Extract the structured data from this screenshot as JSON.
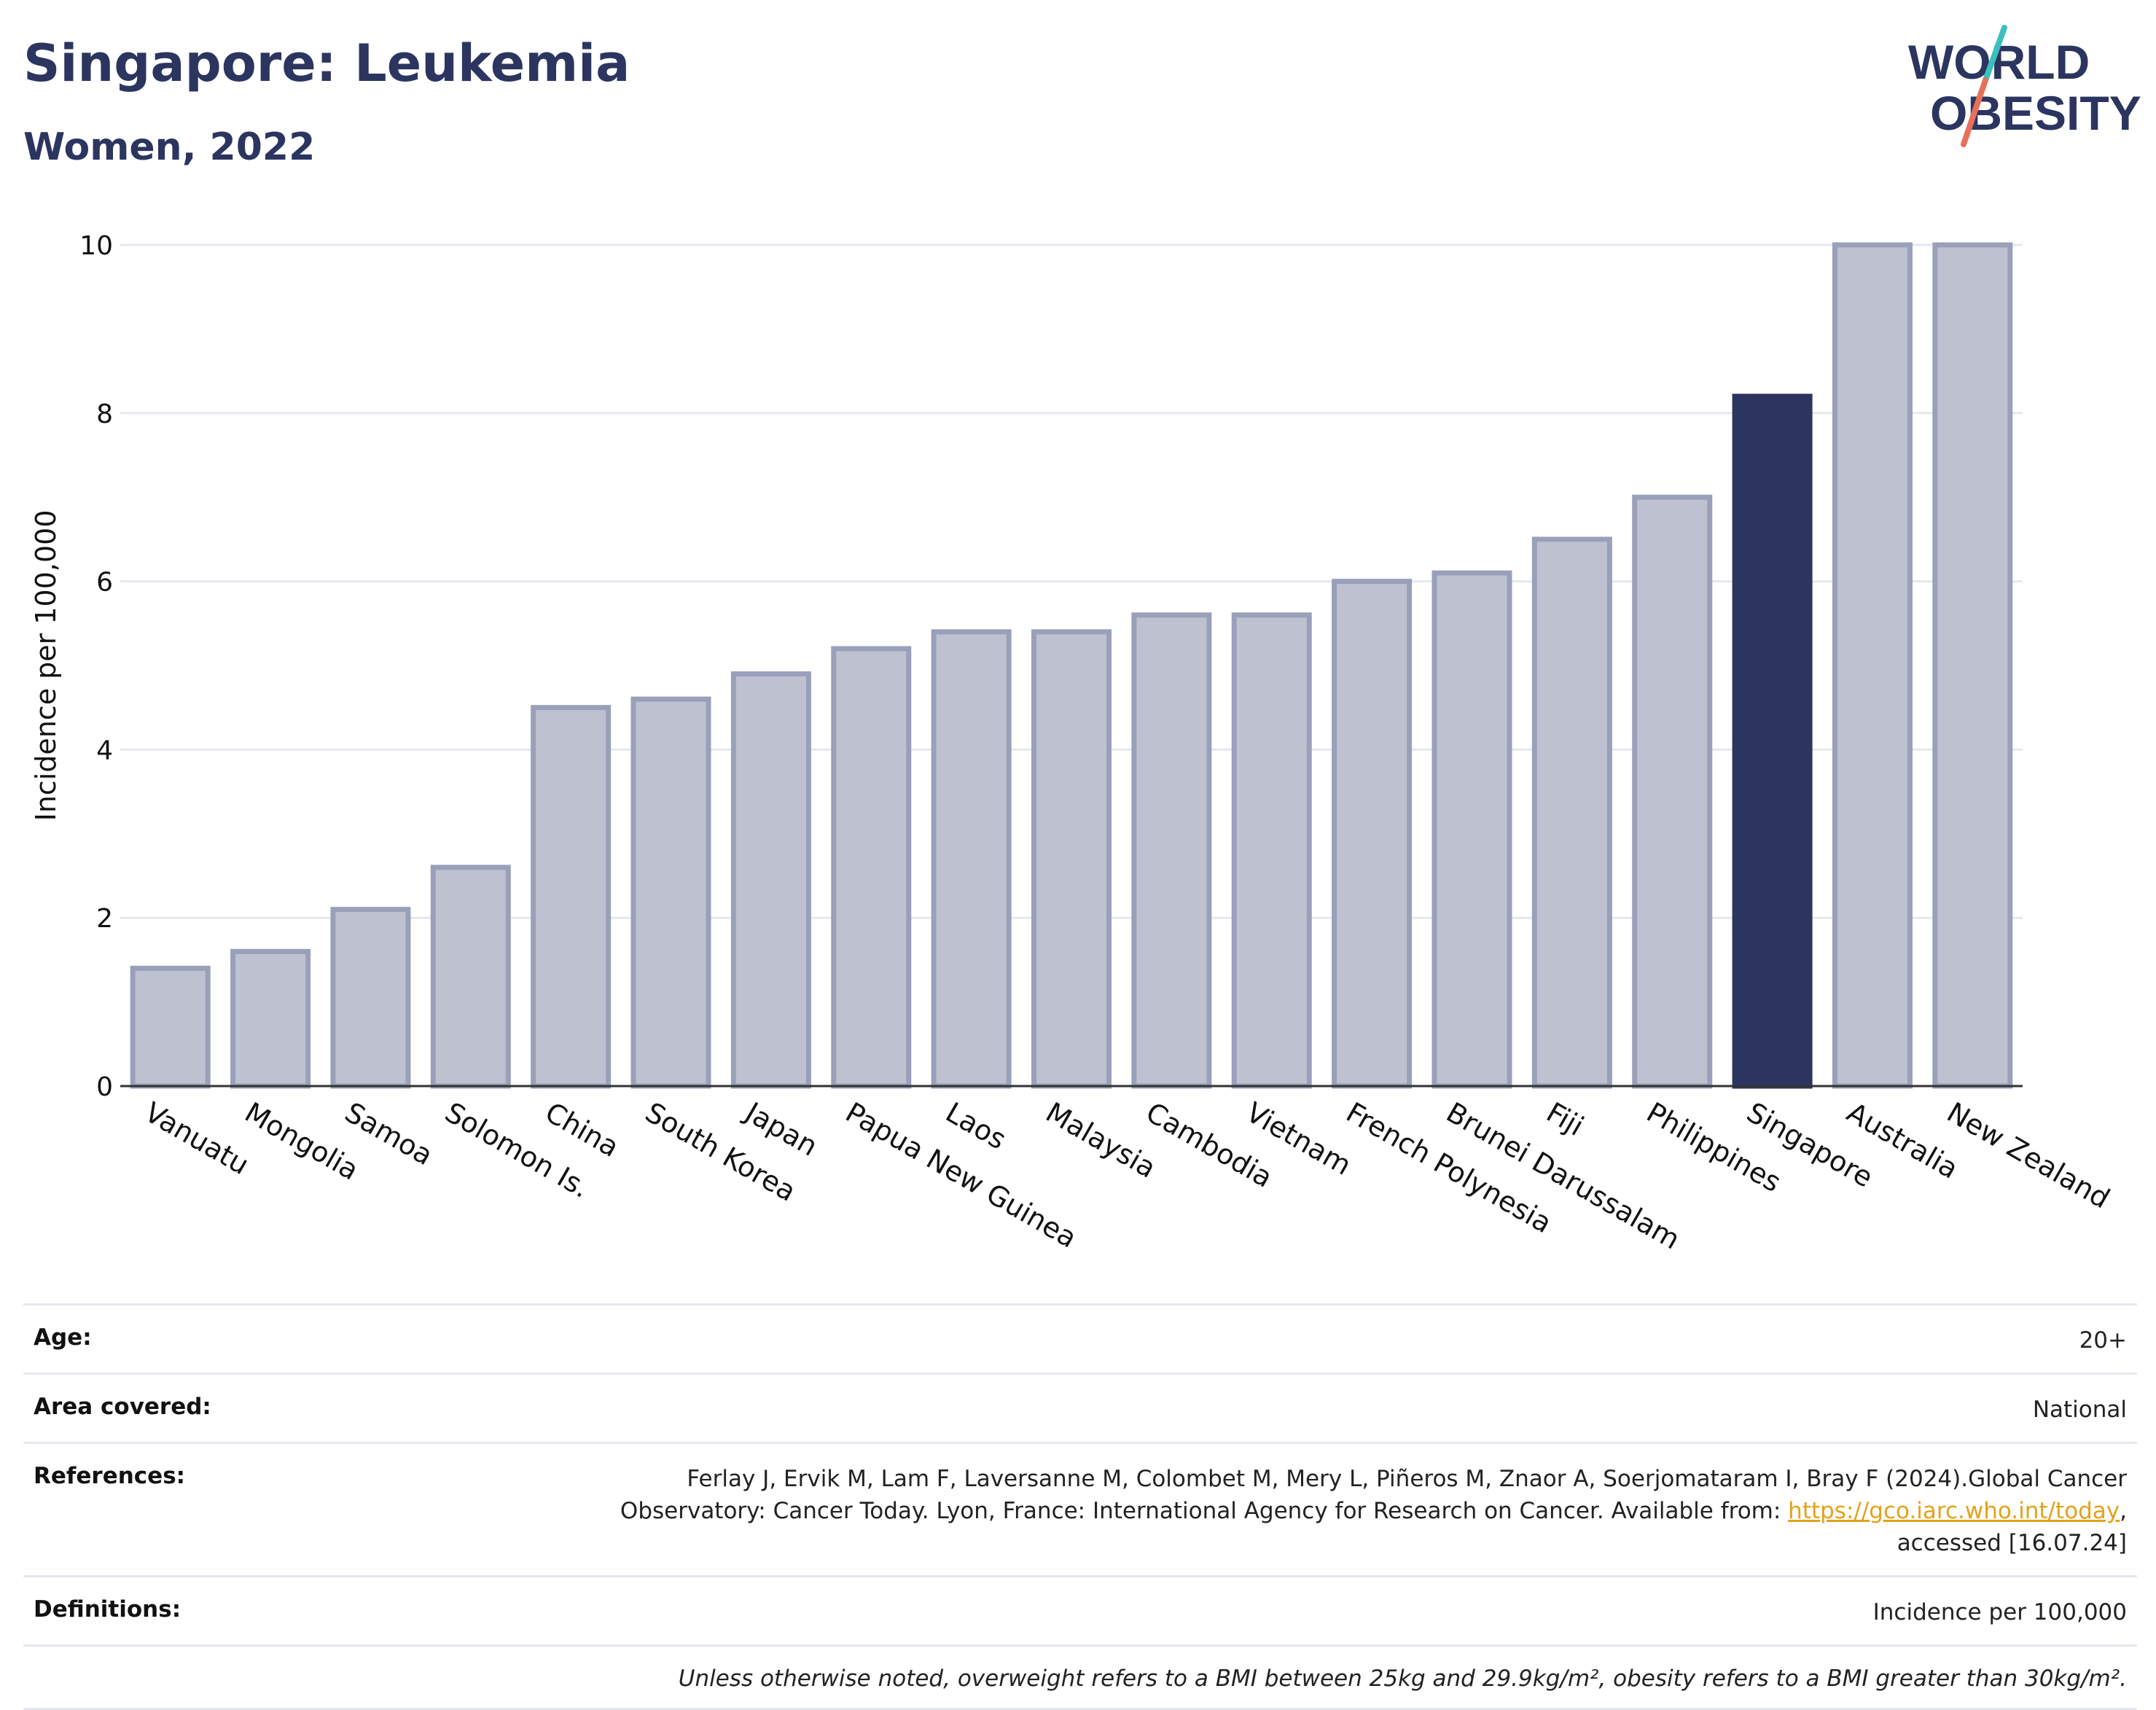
{
  "title": "Singapore: Leukemia",
  "subtitle": "Women, 2022",
  "logo": {
    "line1": "WORLD",
    "line2": "OBESITY",
    "accent_colors": [
      "#3bbfbf",
      "#e8705a"
    ]
  },
  "colors": {
    "highlight": "#2b3560",
    "bar_fill": "#bec2d0",
    "bar_stroke": "#9aa0ba",
    "grid": "#e6e8ef",
    "text": "#2b3560"
  },
  "chart_data": {
    "type": "bar",
    "categories": [
      "Vanuatu",
      "Mongolia",
      "Samoa",
      "Solomon Is.",
      "China",
      "South Korea",
      "Japan",
      "Papua New Guinea",
      "Laos",
      "Malaysia",
      "Cambodia",
      "Vietnam",
      "French Polynesia",
      "Brunei Darussalam",
      "Fiji",
      "Philippines",
      "Singapore",
      "Australia",
      "New Zealand"
    ],
    "values": [
      1.4,
      1.6,
      2.1,
      2.6,
      4.5,
      4.6,
      4.9,
      5.2,
      5.4,
      5.4,
      5.6,
      5.6,
      6.0,
      6.1,
      6.5,
      7.0,
      8.2,
      10.0,
      10.0
    ],
    "highlight": "Singapore",
    "ylabel": "Incidence per 100,000",
    "xlabel": "",
    "ylim": [
      0,
      10
    ],
    "yticks": [
      0,
      2,
      4,
      6,
      8,
      10
    ],
    "grid": true
  },
  "meta": {
    "age_label": "Age:",
    "age_value": "20+",
    "area_label": "Area covered:",
    "area_value": "National",
    "references_label": "References:",
    "references_line1": "Ferlay J, Ervik M, Lam F, Laversanne M, Colombet M, Mery L, Piñeros M, Znaor A, Soerjomataram I, Bray F (2024).Global Cancer",
    "references_line2_pre": "Observatory: Cancer Today. Lyon, France: International Agency for Research on Cancer. Available from: ",
    "references_link": "https://gco.iarc.who.int/today",
    "references_line2_post": ",",
    "references_line3": "accessed [16.07.24]",
    "definitions_label": "Definitions:",
    "definitions_value": "Incidence per 100,000",
    "note": "Unless otherwise noted, overweight refers to a BMI between 25kg and 29.9kg/m², obesity refers to a BMI greater than 30kg/m²."
  }
}
